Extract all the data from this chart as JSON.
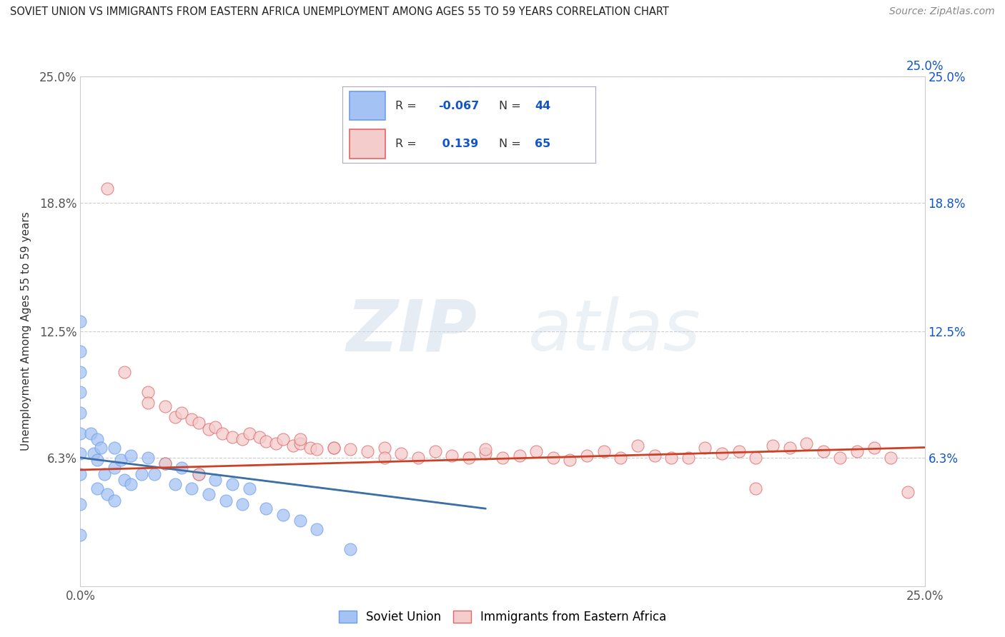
{
  "title": "SOVIET UNION VS IMMIGRANTS FROM EASTERN AFRICA UNEMPLOYMENT AMONG AGES 55 TO 59 YEARS CORRELATION CHART",
  "source": "Source: ZipAtlas.com",
  "ylabel": "Unemployment Among Ages 55 to 59 years",
  "xlim": [
    0.0,
    0.25
  ],
  "ylim": [
    0.0,
    0.25
  ],
  "xtick_values": [
    0.0,
    0.25
  ],
  "xtick_labels": [
    "0.0%",
    "25.0%"
  ],
  "ytick_values": [
    0.063,
    0.125,
    0.188,
    0.25
  ],
  "ytick_labels": [
    "6.3%",
    "12.5%",
    "18.8%",
    "25.0%"
  ],
  "right_ytick_labels": [
    "6.3%",
    "12.5%",
    "18.8%",
    "25.0%"
  ],
  "top_xtick_labels": [
    "25.0%"
  ],
  "legend_r1": "-0.067",
  "legend_n1": "44",
  "legend_r2": "0.139",
  "legend_n2": "65",
  "blue_fill": "#a4c2f4",
  "blue_edge": "#6d9eeb",
  "pink_fill": "#f4cccc",
  "pink_edge": "#e06666",
  "blue_trend_color": "#3d6fa5",
  "pink_trend_color": "#cc4125",
  "text_blue": "#1155cc",
  "grid_color": "#cccccc",
  "legend_text_color": "#1155cc",
  "soviet_x": [
    0.0,
    0.0,
    0.0,
    0.0,
    0.0,
    0.0,
    0.0,
    0.0,
    0.0,
    0.0,
    0.003,
    0.004,
    0.005,
    0.005,
    0.005,
    0.006,
    0.007,
    0.008,
    0.01,
    0.01,
    0.01,
    0.012,
    0.013,
    0.015,
    0.015,
    0.018,
    0.02,
    0.022,
    0.025,
    0.028,
    0.03,
    0.033,
    0.035,
    0.038,
    0.04,
    0.043,
    0.045,
    0.048,
    0.05,
    0.055,
    0.06,
    0.065,
    0.07,
    0.08
  ],
  "soviet_y": [
    0.13,
    0.115,
    0.105,
    0.095,
    0.085,
    0.075,
    0.065,
    0.055,
    0.04,
    0.025,
    0.075,
    0.065,
    0.072,
    0.062,
    0.048,
    0.068,
    0.055,
    0.045,
    0.068,
    0.058,
    0.042,
    0.062,
    0.052,
    0.064,
    0.05,
    0.055,
    0.063,
    0.055,
    0.06,
    0.05,
    0.058,
    0.048,
    0.055,
    0.045,
    0.052,
    0.042,
    0.05,
    0.04,
    0.048,
    0.038,
    0.035,
    0.032,
    0.028,
    0.018
  ],
  "eastern_x": [
    0.008,
    0.013,
    0.02,
    0.02,
    0.025,
    0.028,
    0.03,
    0.033,
    0.035,
    0.038,
    0.04,
    0.042,
    0.045,
    0.048,
    0.05,
    0.053,
    0.055,
    0.058,
    0.06,
    0.063,
    0.065,
    0.068,
    0.07,
    0.075,
    0.08,
    0.085,
    0.09,
    0.095,
    0.1,
    0.105,
    0.11,
    0.115,
    0.12,
    0.125,
    0.13,
    0.135,
    0.14,
    0.145,
    0.15,
    0.155,
    0.16,
    0.165,
    0.17,
    0.175,
    0.18,
    0.185,
    0.19,
    0.195,
    0.2,
    0.205,
    0.21,
    0.215,
    0.22,
    0.225,
    0.23,
    0.235,
    0.24,
    0.245,
    0.025,
    0.035,
    0.065,
    0.075,
    0.09,
    0.12,
    0.2
  ],
  "eastern_y": [
    0.195,
    0.105,
    0.095,
    0.09,
    0.088,
    0.083,
    0.085,
    0.082,
    0.08,
    0.077,
    0.078,
    0.075,
    0.073,
    0.072,
    0.075,
    0.073,
    0.071,
    0.07,
    0.072,
    0.069,
    0.07,
    0.068,
    0.067,
    0.068,
    0.067,
    0.066,
    0.068,
    0.065,
    0.063,
    0.066,
    0.064,
    0.063,
    0.065,
    0.063,
    0.064,
    0.066,
    0.063,
    0.062,
    0.064,
    0.066,
    0.063,
    0.069,
    0.064,
    0.063,
    0.063,
    0.068,
    0.065,
    0.066,
    0.063,
    0.069,
    0.068,
    0.07,
    0.066,
    0.063,
    0.066,
    0.068,
    0.063,
    0.046,
    0.06,
    0.055,
    0.072,
    0.068,
    0.063,
    0.067,
    0.048
  ],
  "soviet_trend_x": [
    0.0,
    0.12
  ],
  "soviet_trend_y": [
    0.063,
    0.038
  ],
  "eastern_trend_x": [
    0.0,
    0.25
  ],
  "eastern_trend_y": [
    0.057,
    0.068
  ]
}
